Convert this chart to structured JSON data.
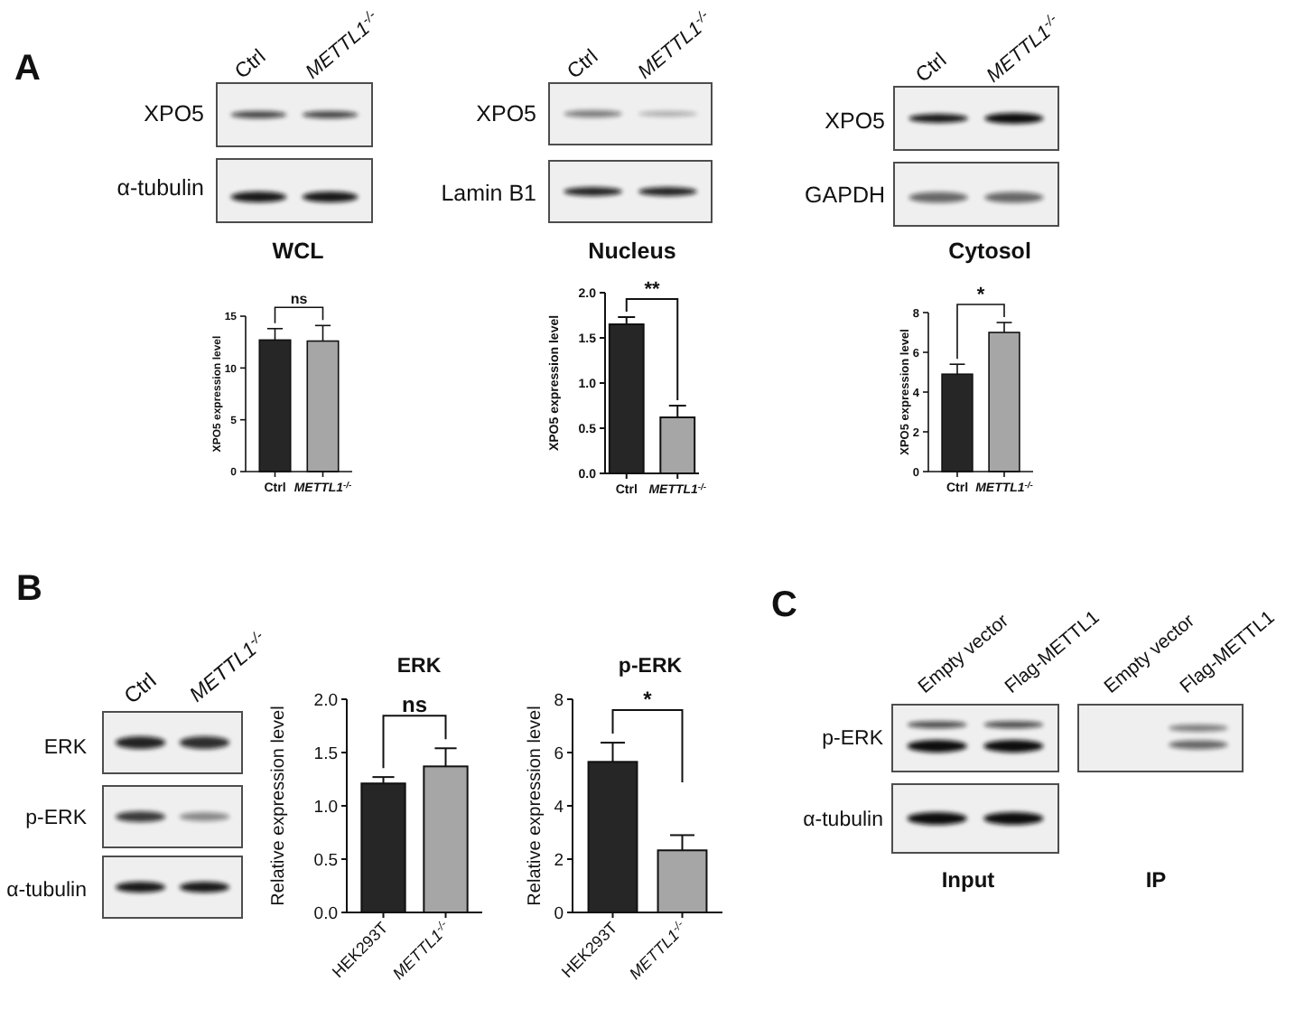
{
  "chart_data": [
    {
      "type": "other",
      "annotations": [
        "A",
        "Ctrl",
        "METTL1$^{-/-}$",
        "XPO5",
        "α-tubulin"
      ]
    },
    {
      "type": "other",
      "annotations": [
        "Ctrl",
        "METTL1$^{-/-}$",
        "XPO5",
        "Lamin B1"
      ]
    },
    {
      "type": "other",
      "annotations": [
        "Ctrl",
        "METTL1$^{-/-}$",
        "XPO5",
        "GAPDH"
      ]
    },
    {
      "type": "bar",
      "title": "WCL",
      "ylabel": "XPO5 expression level",
      "categories": [
        "Ctrl",
        "METTL1$^{-/-}$"
      ],
      "values": [
        12.7,
        12.6
      ],
      "errors": [
        [
          12.7,
          13.8
        ],
        [
          12.6,
          14.1
        ]
      ],
      "colors": [
        "#262626",
        "#a6a6a6"
      ],
      "ylim": [
        0,
        15
      ],
      "yticks": [
        0,
        5,
        10,
        15
      ],
      "annotations": [
        "ns"
      ]
    },
    {
      "type": "bar",
      "title": "Nucleus",
      "ylabel": "XPO5 expression level",
      "categories": [
        "Ctrl",
        "METTL1$^{-/-}$"
      ],
      "values": [
        1.65,
        0.62
      ],
      "errors": [
        [
          1.65,
          1.73
        ],
        [
          0.62,
          0.75
        ]
      ],
      "colors": [
        "#262626",
        "#a6a6a6"
      ],
      "ylim": [
        0,
        2
      ],
      "yticks": [
        {
          "value": 0,
          "label": "0.0"
        },
        0.5,
        {
          "value": 1,
          "label": "1.0"
        },
        1.5,
        {
          "value": 2,
          "label": "2.0"
        }
      ],
      "annotations": [
        "**"
      ]
    },
    {
      "type": "bar",
      "title": "Cytosol",
      "ylabel": "XPO5 expression level",
      "categories": [
        "Ctrl",
        "METTL1$^{-/-}$"
      ],
      "values": [
        4.9,
        7.0
      ],
      "errors": [
        [
          4.9,
          5.4
        ],
        [
          7.0,
          7.5
        ]
      ],
      "colors": [
        "#262626",
        "#a6a6a6"
      ],
      "ylim": [
        0,
        8
      ],
      "yticks": [
        0,
        2,
        4,
        6,
        8
      ],
      "annotations": [
        "*"
      ]
    },
    {
      "type": "other",
      "annotations": [
        "B",
        "Ctrl",
        "METTL1$^{-/-}$",
        "ERK",
        "p-ERK",
        "α-tubulin"
      ]
    },
    {
      "type": "bar",
      "title": "ERK",
      "ylabel": "Relative expression level",
      "categories": [
        "HEK293T",
        "METTL1$^{-/-}$"
      ],
      "values": [
        1.21,
        1.37
      ],
      "errors": [
        [
          1.21,
          1.27
        ],
        [
          1.37,
          1.54
        ]
      ],
      "colors": [
        "#262626",
        "#a6a6a6"
      ],
      "ylim": [
        0,
        2
      ],
      "yticks": [
        {
          "value": 0,
          "label": "0.0"
        },
        0.5,
        {
          "value": 1,
          "label": "1.0"
        },
        1.5,
        {
          "value": 2,
          "label": "2.0"
        }
      ],
      "annotations": [
        "ns"
      ]
    },
    {
      "type": "bar",
      "title": "p-ERK",
      "ylabel": "Relative expression level",
      "categories": [
        "HEK293T",
        "METTL1$^{-/-}$"
      ],
      "values": [
        5.65,
        2.33
      ],
      "errors": [
        [
          5.65,
          6.37
        ],
        [
          2.33,
          2.9
        ]
      ],
      "colors": [
        "#262626",
        "#a6a6a6"
      ],
      "ylim": [
        0,
        8
      ],
      "yticks": [
        0,
        2,
        4,
        6,
        8
      ],
      "annotations": [
        "*"
      ]
    },
    {
      "type": "other",
      "annotations": [
        "C",
        "Empty vector",
        "Flag-METTL1",
        "p-ERK",
        "α-tubulin",
        "Input",
        "Empty vector",
        "Flag-METTL1",
        "IP"
      ]
    }
  ]
}
